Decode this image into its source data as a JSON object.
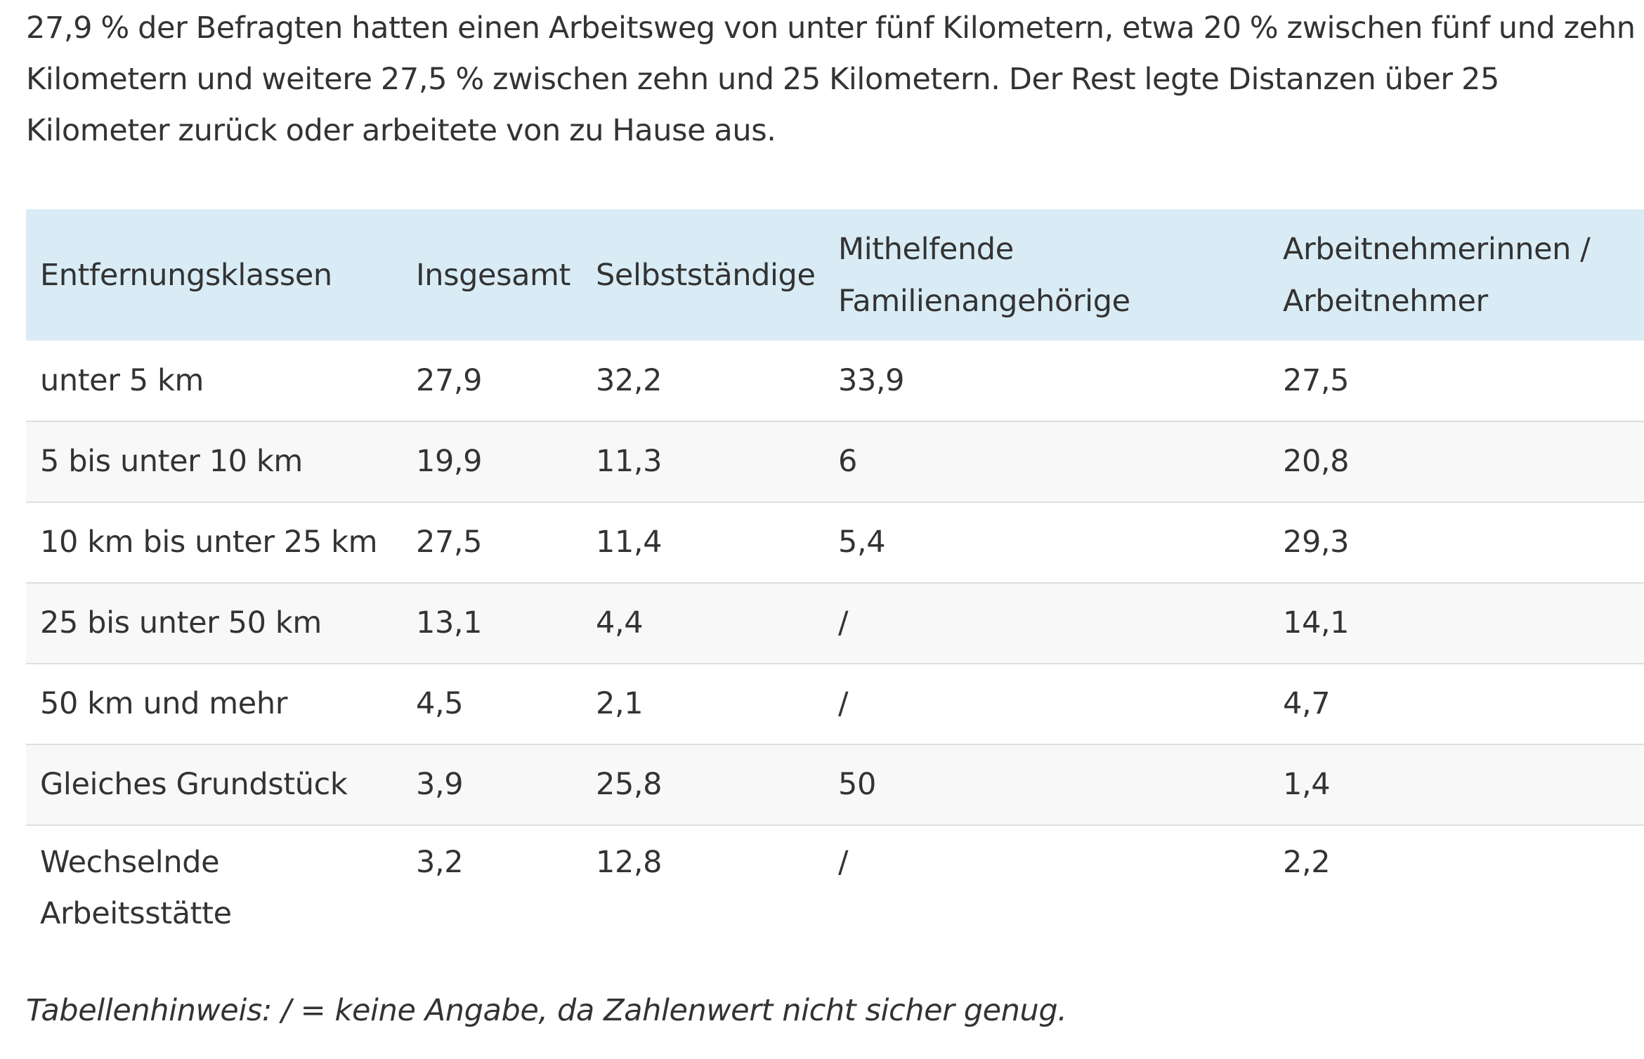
{
  "intro_text": "27,9 % der Befragten hatten einen Arbeitsweg von unter fünf Kilometern, etwa 20 % zwischen fünf und zehn Kilometern und weitere 27,5 % zwischen zehn und 25 Kilometern. Der Rest legte Distanzen über 25 Kilometer zurück oder arbeitete von zu Hause aus.",
  "table": {
    "headers": [
      "Entfernungsklassen",
      "Insgesamt",
      "Selbstständige",
      "Mithelfende Familienangehörige",
      "Arbeitnehmerinnen / Arbeitnehmer"
    ],
    "rows": [
      [
        "unter 5 km",
        "27,9",
        "32,2",
        "33,9",
        "27,5"
      ],
      [
        "5 bis unter 10 km",
        "19,9",
        "11,3",
        "6",
        "20,8"
      ],
      [
        "10 km bis unter 25 km",
        "27,5",
        "11,4",
        "5,4",
        "29,3"
      ],
      [
        "25 bis unter 50 km",
        "13,1",
        "4,4",
        "/",
        "14,1"
      ],
      [
        "50 km und mehr",
        "4,5",
        "2,1",
        "/",
        "4,7"
      ],
      [
        "Gleiches Grundstück",
        "3,9",
        "25,8",
        "50",
        "1,4"
      ],
      [
        "Wechselnde Arbeitsstätte",
        "3,2",
        "12,8",
        "/",
        "2,2"
      ]
    ]
  },
  "note": "Tabellenhinweis: / = keine Angabe, da Zahlenwert nicht sicher genug.",
  "colors": {
    "header_background": "#d9ecf5",
    "stripe_background": "#f8f8f8",
    "row_border": "#dedede",
    "text": "#333333"
  }
}
